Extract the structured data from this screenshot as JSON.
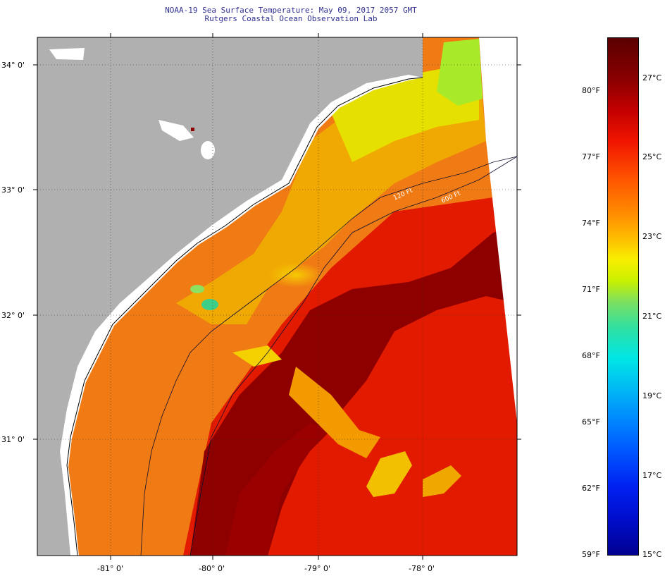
{
  "title": {
    "line1": "NOAA-19 Sea Surface Temperature:  May 09, 2017 2057 GMT",
    "line2": "Rutgers Coastal Ocean Observation Lab"
  },
  "map": {
    "lat_labels": [
      "34° 0'",
      "33° 0'",
      "32° 0'",
      "31° 0'"
    ],
    "lon_labels": [
      "-81° 0'",
      "-80° 0'",
      "-79° 0'",
      "-78° 0'"
    ],
    "isobath_labels": [
      "120 Ft",
      "600 Ft"
    ],
    "colors": {
      "land": "#b0b0b0",
      "no_data": "#ffffff",
      "warm_core": "#8b0000",
      "shelf_orange": "#f08a10",
      "nearshore_yellow": "#e9e500",
      "cool_green": "#66dd66"
    }
  },
  "colorbar": {
    "fahrenheit": [
      {
        "label": "80°F",
        "value": 80
      },
      {
        "label": "77°F",
        "value": 77
      },
      {
        "label": "74°F",
        "value": 74
      },
      {
        "label": "71°F",
        "value": 71
      },
      {
        "label": "68°F",
        "value": 68
      },
      {
        "label": "65°F",
        "value": 65
      },
      {
        "label": "62°F",
        "value": 62
      },
      {
        "label": "59°F",
        "value": 59
      }
    ],
    "celsius": [
      {
        "label": "27°C",
        "value": 27
      },
      {
        "label": "25°C",
        "value": 25
      },
      {
        "label": "23°C",
        "value": 23
      },
      {
        "label": "21°C",
        "value": 21
      },
      {
        "label": "19°C",
        "value": 19
      },
      {
        "label": "17°C",
        "value": 17
      },
      {
        "label": "15°C",
        "value": 15
      }
    ]
  }
}
